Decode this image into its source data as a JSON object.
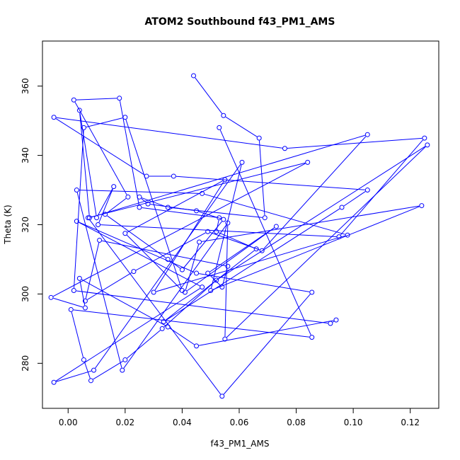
{
  "chart_data": {
    "type": "line",
    "title": "ATOM2 Southbound f43_PM1_AMS",
    "xlabel": "f43_PM1_AMS",
    "ylabel": "Theta (K)",
    "xlim": [
      -0.009,
      0.13
    ],
    "ylim": [
      267,
      373
    ],
    "xticks": [
      0.0,
      0.02,
      0.04,
      0.06,
      0.08,
      0.1,
      0.12
    ],
    "xtick_labels": [
      "0.00",
      "0.02",
      "0.04",
      "0.06",
      "0.08",
      "0.10",
      "0.12"
    ],
    "yticks": [
      280,
      300,
      320,
      340,
      360
    ],
    "ytick_labels": [
      "280",
      "300",
      "320",
      "340",
      "360"
    ],
    "grid": false,
    "series_color": "#0000ff",
    "marker": "open-circle",
    "series": [
      {
        "x": [
          0.044,
          0.0545,
          0.067,
          0.069,
          0.035,
          0.025,
          0.028,
          0.045,
          0.0545,
          0.04,
          0.035,
          0.013,
          0.021,
          0.002,
          0.018,
          0.025,
          0.053,
          0.052,
          0.066,
          0.0335,
          0.096,
          0.105,
          0.037,
          0.0275,
          -0.005,
          0.076,
          0.125,
          0.095,
          0.0105,
          0.016,
          0.01,
          0.004,
          0.0075,
          0.105,
          0.068,
          0.049,
          0.023,
          0.006,
          0.011,
          0.056,
          0.054,
          0.049,
          0.073,
          0.041,
          0.046,
          0.124,
          0.05,
          0.061,
          0.009,
          -0.005,
          0.047,
          0.003,
          0.045,
          0.0855,
          0.054,
          0.007,
          0.084,
          -0.006,
          0.006,
          0.004,
          0.035,
          0.045,
          0.094,
          0.092,
          0.002,
          0.0055,
          0.02,
          0.04,
          0.02,
          0.055,
          0.03,
          0.098,
          0.047,
          0.003,
          0.019,
          0.056,
          0.055,
          0.126,
          0.052,
          0.033,
          0.02,
          0.008,
          0.0055,
          0.001,
          0.0855,
          0.053
        ],
        "y": [
          363,
          351.5,
          345,
          322,
          325,
          328,
          326,
          324,
          321.5,
          307,
          310,
          323,
          328,
          356,
          356.5,
          325,
          322,
          318,
          313,
          292,
          325,
          330,
          334,
          334,
          351,
          342,
          345,
          316.5,
          320,
          331,
          322,
          353,
          322,
          346,
          312.5,
          318,
          306.5,
          298,
          315.5,
          308,
          302,
          306,
          319.5,
          300.5,
          315,
          325.5,
          301,
          338,
          278,
          274.5,
          302,
          321,
          306,
          300.5,
          270.5,
          322,
          338,
          299,
          296,
          304.5,
          290.5,
          285,
          292.5,
          291.5,
          301,
          348,
          351,
          301,
          317.5,
          333,
          300.5,
          317,
          329,
          330,
          278,
          320.5,
          287,
          343,
          304,
          290,
          281,
          275,
          281,
          295.5,
          287.5,
          348
        ]
      }
    ]
  }
}
